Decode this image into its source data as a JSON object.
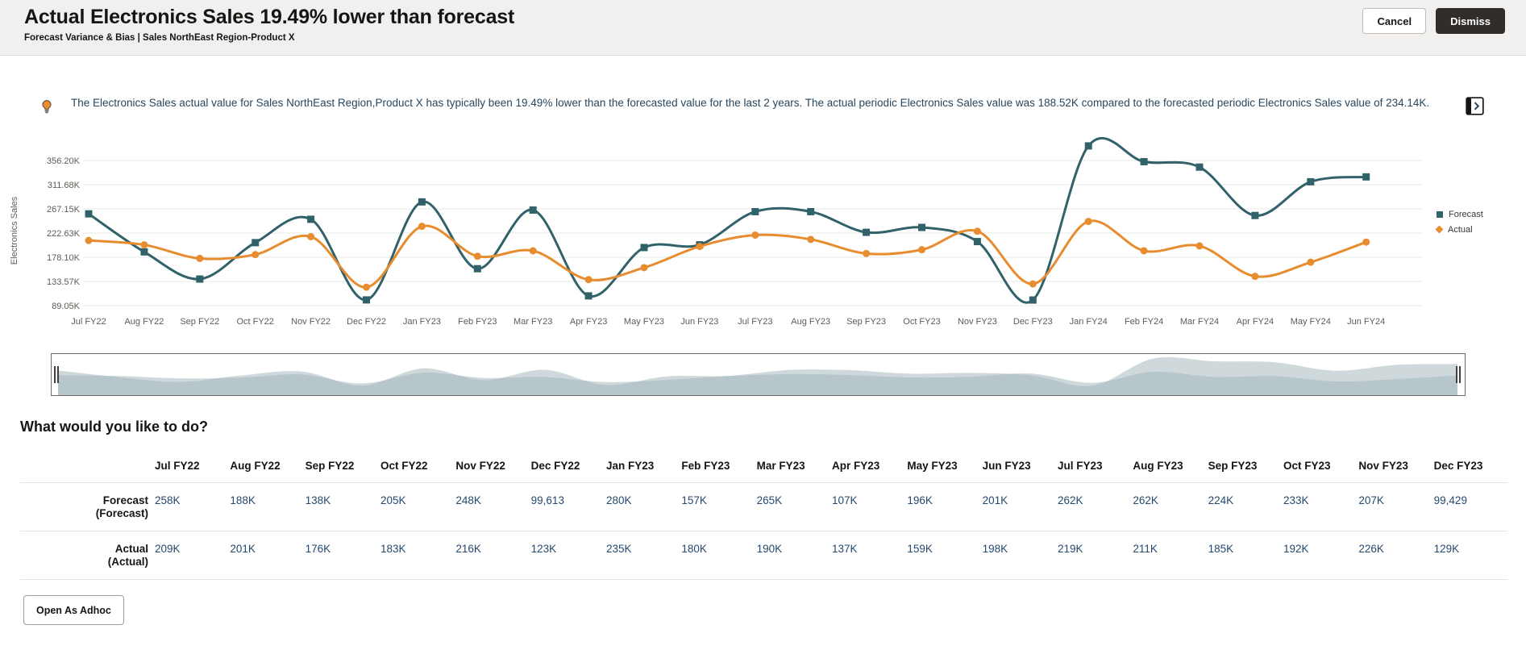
{
  "header": {
    "title": "Actual Electronics Sales 19.49% lower than forecast",
    "subtitle": "Forecast Variance & Bias | Sales NorthEast Region-Product X",
    "cancel_label": "Cancel",
    "dismiss_label": "Dismiss"
  },
  "insight": {
    "text": "The Electronics Sales actual value for Sales NorthEast Region,Product X has typically been 19.49% lower than the forecasted value for the last 2 years. The actual periodic Electronics Sales value was 188.52K compared to the forecasted periodic Electronics Sales value of 234.14K."
  },
  "chart_data": {
    "type": "line",
    "title": "",
    "xlabel": "",
    "ylabel": "Electronics Sales",
    "grid": true,
    "legend_position": "right",
    "unit": "K",
    "ylim": [
      80,
      400
    ],
    "y_ticks": [
      356.2,
      311.68,
      267.15,
      222.63,
      178.1,
      133.57,
      89.05
    ],
    "y_tick_labels": [
      "356.20K",
      "311.68K",
      "267.15K",
      "222.63K",
      "178.10K",
      "133.57K",
      "89.05K"
    ],
    "x": [
      "Jul FY22",
      "Aug FY22",
      "Sep FY22",
      "Oct FY22",
      "Nov FY22",
      "Dec FY22",
      "Jan FY23",
      "Feb FY23",
      "Mar FY23",
      "Apr FY23",
      "May FY23",
      "Jun FY23",
      "Jul FY23",
      "Aug FY23",
      "Sep FY23",
      "Oct FY23",
      "Nov FY23",
      "Dec FY23",
      "Jan FY24",
      "Feb FY24",
      "Mar FY24",
      "Apr FY24",
      "May FY24",
      "Jun FY24"
    ],
    "series": [
      {
        "name": "Forecast",
        "color": "#31626a",
        "marker": "square",
        "values": [
          258,
          188,
          138,
          205,
          248,
          99.6,
          280,
          157,
          265,
          107,
          196,
          201,
          262,
          262,
          224,
          233,
          207,
          99.4,
          383,
          354,
          344,
          255,
          317,
          326
        ]
      },
      {
        "name": "Actual",
        "color": "#e78c2f",
        "marker": "circle",
        "values": [
          209,
          201,
          176,
          183,
          216,
          123,
          235,
          180,
          190,
          137,
          159,
          198,
          219,
          211,
          185,
          192,
          226,
          129,
          244,
          190,
          199,
          143,
          169,
          206
        ]
      }
    ]
  },
  "overview": {
    "fill_color": "#9fb4ba"
  },
  "prompt_heading": "What would you like to do?",
  "table": {
    "columns": [
      "Jul FY22",
      "Aug FY22",
      "Sep FY22",
      "Oct FY22",
      "Nov FY22",
      "Dec FY22",
      "Jan FY23",
      "Feb FY23",
      "Mar FY23",
      "Apr FY23",
      "May FY23",
      "Jun FY23",
      "Jul FY23",
      "Aug FY23",
      "Sep FY23",
      "Oct FY23",
      "Nov FY23",
      "Dec FY23"
    ],
    "rows": [
      {
        "label": "Forecast",
        "sublabel": "(Forecast)",
        "values": [
          "258K",
          "188K",
          "138K",
          "205K",
          "248K",
          "99,613",
          "280K",
          "157K",
          "265K",
          "107K",
          "196K",
          "201K",
          "262K",
          "262K",
          "224K",
          "233K",
          "207K",
          "99,429"
        ]
      },
      {
        "label": "Actual",
        "sublabel": "(Actual)",
        "values": [
          "209K",
          "201K",
          "176K",
          "183K",
          "216K",
          "123K",
          "235K",
          "180K",
          "190K",
          "137K",
          "159K",
          "198K",
          "219K",
          "211K",
          "185K",
          "192K",
          "226K",
          "129K"
        ]
      }
    ]
  },
  "footer": {
    "open_adhoc_label": "Open As Adhoc"
  },
  "colors": {
    "header_bg": "#f2f0ee",
    "primary_button_bg": "#312d2a",
    "forecast": "#31626a",
    "actual": "#e78c2f",
    "insight_text": "#28475e",
    "table_value": "#26496e"
  }
}
